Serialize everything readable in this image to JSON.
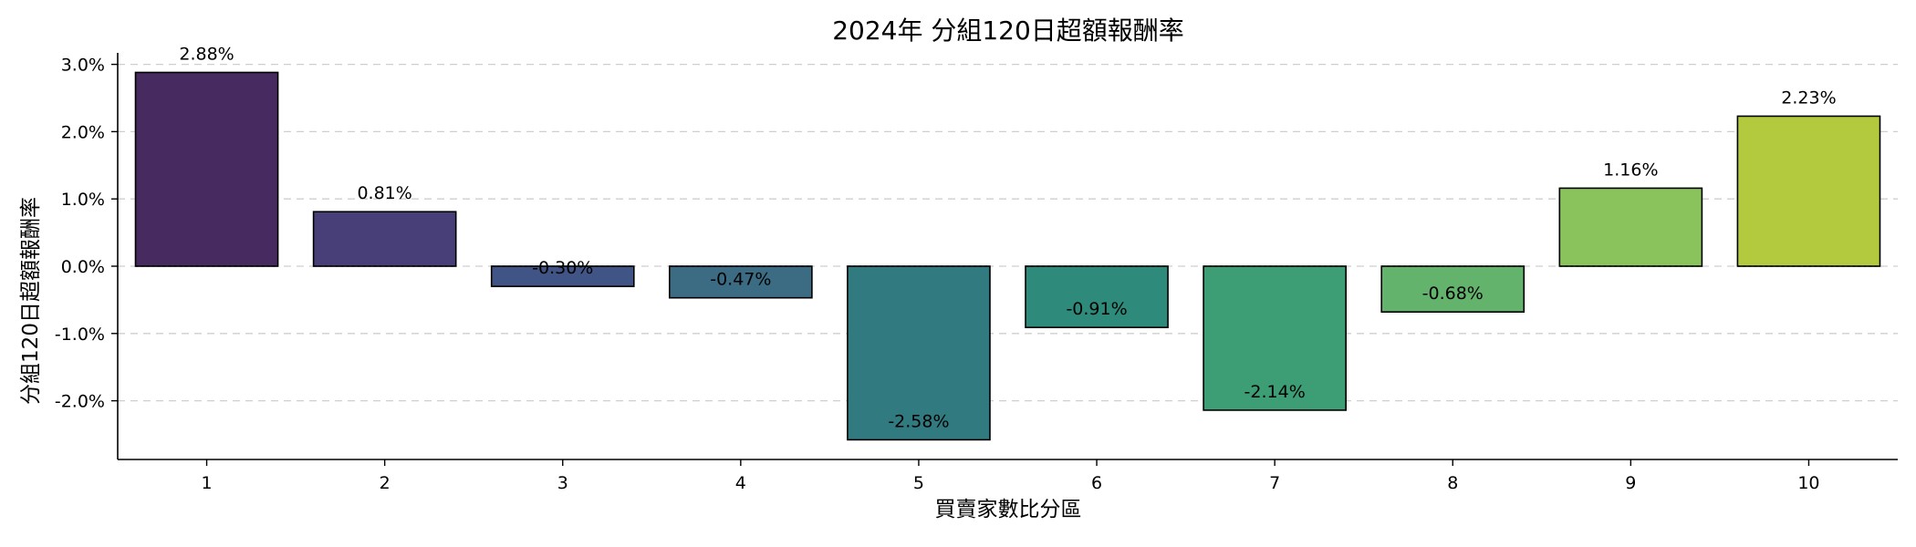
{
  "chart_data": {
    "type": "bar",
    "title": "2024年 分組120日超額報酬率",
    "xlabel": "買賣家數比分區",
    "ylabel": "分組120日超額報酬率",
    "categories": [
      "1",
      "2",
      "3",
      "4",
      "5",
      "6",
      "7",
      "8",
      "9",
      "10"
    ],
    "values": [
      2.88,
      0.81,
      -0.3,
      -0.47,
      -2.58,
      -0.91,
      -2.14,
      -0.68,
      1.16,
      2.23
    ],
    "data_labels": [
      "2.88%",
      "0.81%",
      "-0.30%",
      "-0.47%",
      "-2.58%",
      "-0.91%",
      "-2.14%",
      "-0.68%",
      "1.16%",
      "2.23%"
    ],
    "yticks": [
      3.0,
      2.0,
      1.0,
      0.0,
      -1.0,
      -2.0
    ],
    "ytick_labels": [
      "3.0%",
      "2.0%",
      "1.0%",
      "0.0%",
      "-1.0%",
      "-2.0%"
    ],
    "ylim": [
      -2.9,
      3.2
    ],
    "grid": "y-dashed",
    "colors": [
      "#472a5f",
      "#483f78",
      "#415486",
      "#3c6c84",
      "#317a80",
      "#2e8a7a",
      "#3d9e76",
      "#64b36d",
      "#8ac35c",
      "#b3ca3e"
    ]
  }
}
